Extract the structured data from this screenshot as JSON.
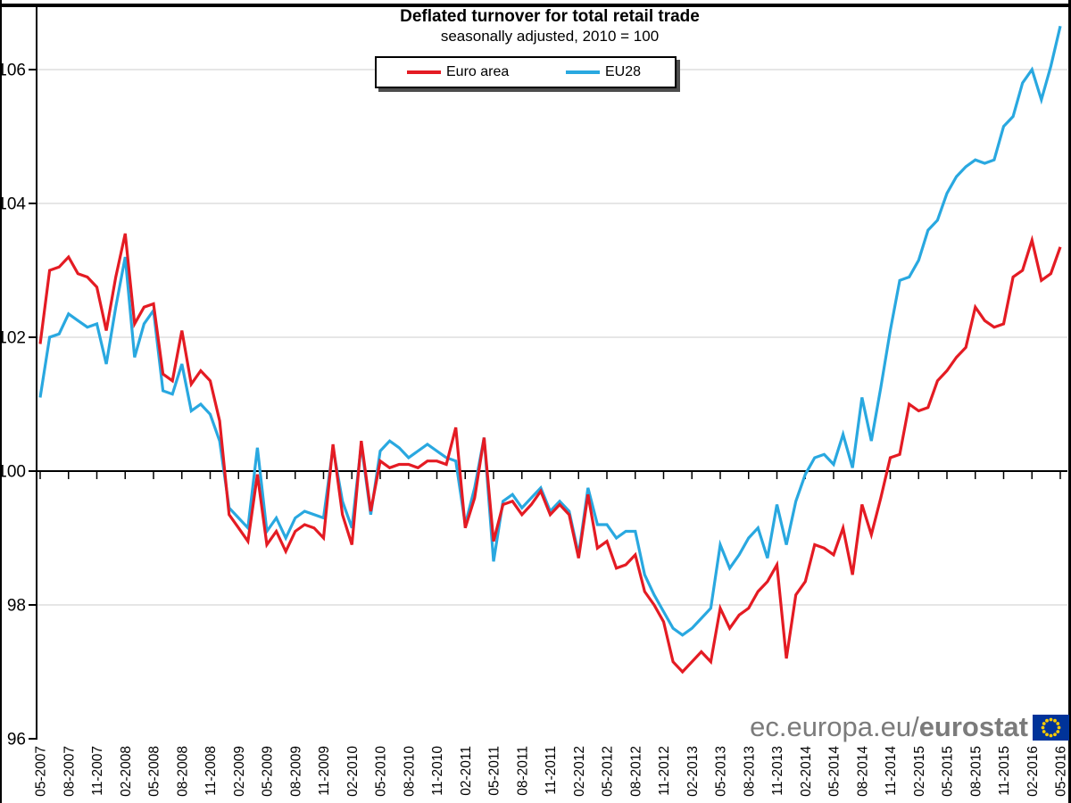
{
  "title": "Deflated turnover for total retail trade",
  "subtitle": "seasonally adjusted, 2010 = 100",
  "watermark": {
    "prefix": "ec.europa.eu/",
    "brand": "eurostat",
    "flag_icon": "eu-flag-icon",
    "flag_bg": "#003399",
    "star_color": "#ffcc00"
  },
  "colors": {
    "euro_area": "#e41b23",
    "eu28": "#29a8e0",
    "grid": "#d6d6d6",
    "axis": "#000000"
  },
  "chart_data": {
    "type": "line",
    "title": "Deflated turnover for total retail trade",
    "subtitle": "seasonally adjusted, 2010 = 100",
    "frequency": "monthly",
    "x_start": "05-2007",
    "x_end": "05-2016",
    "x_tick_labels": [
      "05-2007",
      "08-2007",
      "11-2007",
      "02-2008",
      "05-2008",
      "08-2008",
      "11-2008",
      "02-2009",
      "05-2009",
      "08-2009",
      "11-2009",
      "02-2010",
      "05-2010",
      "08-2010",
      "11-2010",
      "02-2011",
      "05-2011",
      "08-2011",
      "11-2011",
      "02-2012",
      "05-2012",
      "08-2012",
      "11-2012",
      "02-2013",
      "05-2013",
      "08-2013",
      "11-2013",
      "02-2014",
      "05-2014",
      "08-2014",
      "11-2014",
      "02-2015",
      "05-2015",
      "08-2015",
      "11-2015",
      "02-2016",
      "05-2016"
    ],
    "y_ticks": [
      96,
      98,
      100,
      102,
      104,
      106
    ],
    "ylim": [
      96,
      106.93
    ],
    "baseline": 100,
    "grid": "horizontal-light",
    "legend_position": "top-center",
    "series": [
      {
        "name": "Euro area",
        "color": "#e41b23",
        "values": [
          101.9,
          103.0,
          103.05,
          103.2,
          102.95,
          102.9,
          102.75,
          102.1,
          102.9,
          103.55,
          102.2,
          102.45,
          102.5,
          101.45,
          101.35,
          102.1,
          101.3,
          101.5,
          101.35,
          100.75,
          99.35,
          99.15,
          98.95,
          99.95,
          98.9,
          99.1,
          98.8,
          99.1,
          99.2,
          99.15,
          99.0,
          100.4,
          99.35,
          98.9,
          100.45,
          99.4,
          100.15,
          100.05,
          100.1,
          100.1,
          100.05,
          100.15,
          100.15,
          100.1,
          100.65,
          99.15,
          99.6,
          100.5,
          98.95,
          99.5,
          99.55,
          99.35,
          99.5,
          99.7,
          99.35,
          99.5,
          99.35,
          98.7,
          99.65,
          98.85,
          98.95,
          98.55,
          98.6,
          98.75,
          98.2,
          98.0,
          97.75,
          97.15,
          97.0,
          97.15,
          97.3,
          97.15,
          97.95,
          97.65,
          97.85,
          97.95,
          98.2,
          98.35,
          98.6,
          97.2,
          98.15,
          98.35,
          98.9,
          98.85,
          98.75,
          99.15,
          98.45,
          99.5,
          99.05,
          99.6,
          100.2,
          100.25,
          101.0,
          100.9,
          100.95,
          101.35,
          101.5,
          101.7,
          101.85,
          102.45,
          102.25,
          102.15,
          102.2,
          102.9,
          103.0,
          103.45,
          102.85,
          102.95,
          103.35
        ]
      },
      {
        "name": "EU28",
        "color": "#29a8e0",
        "values": [
          101.1,
          102.0,
          102.05,
          102.35,
          102.25,
          102.15,
          102.2,
          101.6,
          102.45,
          103.2,
          101.7,
          102.2,
          102.4,
          101.2,
          101.15,
          101.6,
          100.9,
          101.0,
          100.85,
          100.45,
          99.45,
          99.3,
          99.15,
          100.35,
          99.1,
          99.3,
          99.0,
          99.3,
          99.4,
          99.35,
          99.3,
          100.35,
          99.55,
          99.15,
          100.4,
          99.35,
          100.3,
          100.45,
          100.35,
          100.2,
          100.3,
          100.4,
          100.3,
          100.2,
          100.15,
          99.2,
          99.75,
          100.5,
          98.65,
          99.55,
          99.65,
          99.45,
          99.6,
          99.75,
          99.4,
          99.55,
          99.4,
          98.75,
          99.75,
          99.2,
          99.2,
          99.0,
          99.1,
          99.1,
          98.45,
          98.15,
          97.9,
          97.65,
          97.55,
          97.65,
          97.8,
          97.95,
          98.9,
          98.55,
          98.75,
          99.0,
          99.15,
          98.7,
          99.5,
          98.9,
          99.55,
          99.95,
          100.2,
          100.25,
          100.1,
          100.55,
          100.05,
          101.1,
          100.45,
          101.25,
          102.1,
          102.85,
          102.9,
          103.15,
          103.6,
          103.75,
          104.15,
          104.4,
          104.55,
          104.65,
          104.6,
          104.65,
          105.15,
          105.3,
          105.8,
          106.0,
          105.55,
          106.05,
          106.65
        ]
      }
    ]
  }
}
